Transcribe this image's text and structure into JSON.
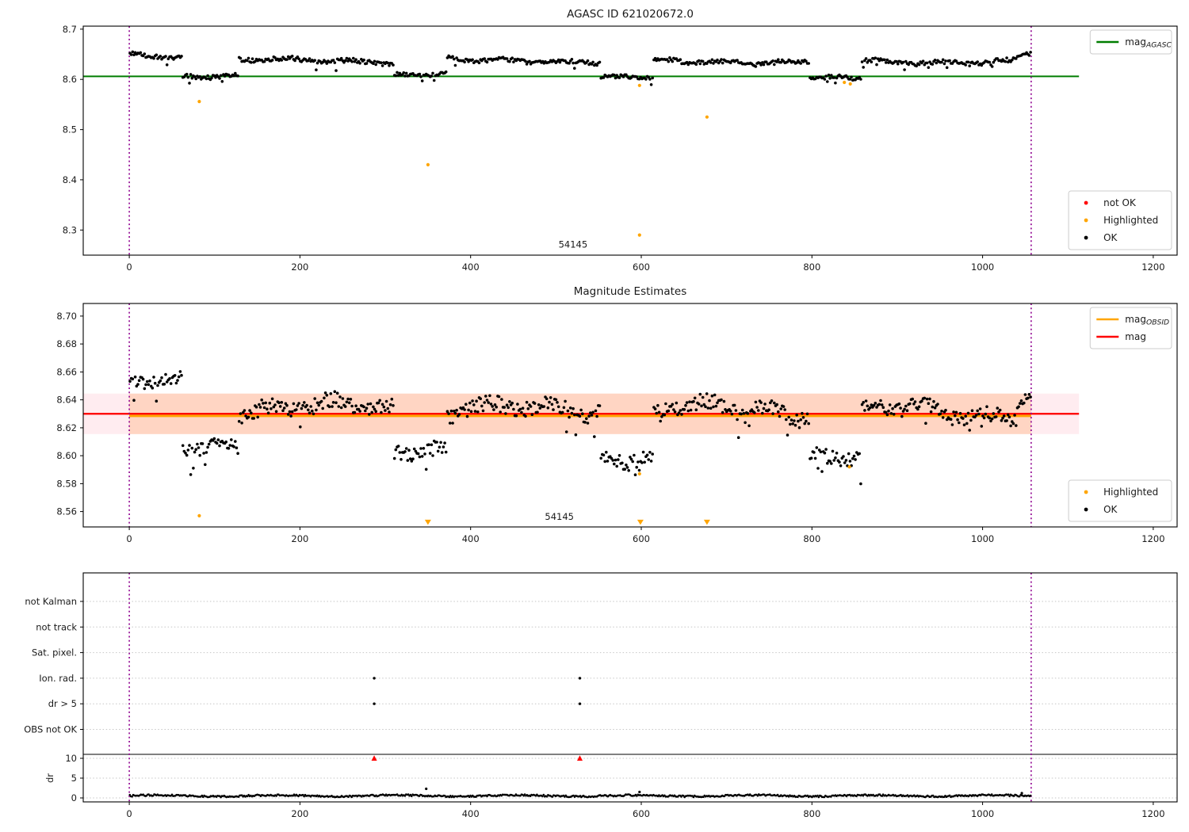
{
  "page": {
    "background": "#ffffff"
  },
  "colors": {
    "ok": "#000000",
    "highlighted": "#ffa500",
    "not_ok": "#ff0000",
    "mag_agasc_line": "#007d00",
    "mag_line": "#ff0000",
    "mag_obsid_line": "#ffa500",
    "interval_line": "#8f008f",
    "band_outer": "rgba(255,110,140,0.13)",
    "band_inner": "rgba(255,145,60,0.25)",
    "grid": "#c6c6c6",
    "axis": "#000000",
    "legend_border": "#cccccc"
  },
  "chart_data": [
    {
      "id": "agasc",
      "type": "scatter",
      "title": "AGASC ID 621020672.0",
      "xlabel": "",
      "ylabel": "",
      "xlim": [
        -54,
        1228
      ],
      "ylim": [
        8.25,
        8.706
      ],
      "xticks": [
        0,
        200,
        400,
        600,
        800,
        1000,
        1200
      ],
      "xticklabels": [
        "0",
        "200",
        "400",
        "600",
        "800",
        "1000",
        "1200"
      ],
      "yticks": [
        8.3,
        8.4,
        8.5,
        8.6,
        8.7
      ],
      "yticklabels": [
        "8.3",
        "8.4",
        "8.5",
        "8.6",
        "8.7"
      ],
      "grid": false,
      "lines": [
        {
          "name": "mag_agasc",
          "y": 8.606,
          "x0": -54,
          "x1": 1113,
          "color_key": "mag_agasc_line",
          "width": 2
        }
      ],
      "vlines": {
        "x": [
          0,
          1057
        ],
        "color_key": "interval_line"
      },
      "series": [
        {
          "name": "OK",
          "color_key": "ok",
          "marker_radius": 1.8,
          "step": 1.55,
          "segments": [
            [
              0,
              62,
              8.647,
              0.006
            ],
            [
              62,
              128,
              8.608,
              0.0055
            ],
            [
              128,
              310,
              8.637,
              0.006
            ],
            [
              310,
              372,
              8.61,
              0.005
            ],
            [
              372,
              552,
              8.637,
              0.006
            ],
            [
              552,
              614,
              8.603,
              0.0055
            ],
            [
              614,
              797,
              8.636,
              0.006
            ],
            [
              797,
              858,
              8.6,
              0.0055
            ],
            [
              858,
              1040,
              8.636,
              0.006
            ],
            [
              1040,
              1057,
              8.649,
              0.005
            ]
          ]
        },
        {
          "name": "not OK",
          "color_key": "not_ok",
          "marker_radius": 2.1,
          "points": []
        },
        {
          "name": "Highlighted",
          "color_key": "highlighted",
          "marker_radius": 2.1,
          "points": [
            [
              82,
              8.556
            ],
            [
              350,
              8.43
            ],
            [
              598,
              8.29
            ],
            [
              598,
              8.588
            ],
            [
              677,
              8.525
            ],
            [
              838,
              8.594
            ],
            [
              845,
              8.591
            ]
          ]
        }
      ],
      "annotations": [
        {
          "text": "54145",
          "x": 520,
          "y": 8.265
        }
      ],
      "legends": [
        {
          "loc": "upper-right",
          "entries": [
            {
              "type": "line",
              "label": "mag",
              "sub": "AGASC",
              "color_key": "mag_agasc_line"
            }
          ]
        },
        {
          "loc": "lower-right",
          "entries": [
            {
              "type": "dot",
              "label": "not OK",
              "color_key": "not_ok"
            },
            {
              "type": "dot",
              "label": "Highlighted",
              "color_key": "highlighted"
            },
            {
              "type": "dot",
              "label": "OK",
              "color_key": "ok"
            }
          ]
        }
      ]
    },
    {
      "id": "mag",
      "type": "scatter",
      "title": "Magnitude Estimates",
      "xlabel": "",
      "ylabel": "",
      "xlim": [
        -54,
        1228
      ],
      "ylim": [
        8.549,
        8.709
      ],
      "xticks": [
        0,
        200,
        400,
        600,
        800,
        1000,
        1200
      ],
      "xticklabels": [
        "0",
        "200",
        "400",
        "600",
        "800",
        "1000",
        "1200"
      ],
      "yticks": [
        8.56,
        8.58,
        8.6,
        8.62,
        8.64,
        8.66,
        8.68,
        8.7
      ],
      "yticklabels": [
        "8.56",
        "8.58",
        "8.60",
        "8.62",
        "8.64",
        "8.66",
        "8.68",
        "8.70"
      ],
      "grid": false,
      "bands": [
        {
          "y0": 8.6155,
          "y1": 8.6445,
          "x0": -54,
          "x1": 1113,
          "color_key": "band_outer"
        },
        {
          "y0": 8.6155,
          "y1": 8.6445,
          "x0": 0,
          "x1": 1057,
          "color_key": "band_inner"
        }
      ],
      "lines": [
        {
          "name": "mag_obsid",
          "y": 8.6285,
          "x0": 0,
          "x1": 1057,
          "color_key": "mag_obsid_line",
          "width": 3
        },
        {
          "name": "mag",
          "y": 8.63,
          "x0": -54,
          "x1": 1113,
          "color_key": "mag_line",
          "width": 2.4
        }
      ],
      "vlines": {
        "x": [
          0,
          1057
        ],
        "color_key": "interval_line"
      },
      "series": [
        {
          "name": "OK",
          "color_key": "ok",
          "marker_radius": 1.8,
          "step": 1.55,
          "segments": [
            [
              0,
              62,
              8.651,
              0.006
            ],
            [
              62,
              128,
              8.608,
              0.007
            ],
            [
              128,
              310,
              8.633,
              0.0075
            ],
            [
              310,
              372,
              8.607,
              0.007
            ],
            [
              372,
              552,
              8.632,
              0.0075
            ],
            [
              552,
              614,
              8.601,
              0.007
            ],
            [
              614,
              797,
              8.632,
              0.0075
            ],
            [
              797,
              858,
              8.601,
              0.007
            ],
            [
              858,
              1040,
              8.631,
              0.0075
            ],
            [
              1040,
              1057,
              8.641,
              0.007
            ]
          ]
        },
        {
          "name": "Highlighted",
          "color_key": "highlighted",
          "marker_radius": 2.1,
          "points": [
            [
              82,
              8.557
            ],
            [
              598,
              8.587
            ],
            [
              844,
              8.592
            ]
          ]
        }
      ],
      "clip_markers": {
        "shape": "triangle-down",
        "y": 8.5525,
        "x": [
          350,
          599,
          677
        ],
        "color_key": "highlighted"
      },
      "annotations": [
        {
          "text": "54145",
          "x": 504,
          "y": 8.554
        }
      ],
      "legends": [
        {
          "loc": "upper-right",
          "entries": [
            {
              "type": "line",
              "label": "mag",
              "sub": "OBSID",
              "color_key": "mag_obsid_line"
            },
            {
              "type": "line",
              "label": "mag",
              "color_key": "mag_line"
            }
          ]
        },
        {
          "loc": "lower-right",
          "entries": [
            {
              "type": "dot",
              "label": "Highlighted",
              "color_key": "highlighted"
            },
            {
              "type": "dot",
              "label": "OK",
              "color_key": "ok"
            }
          ]
        }
      ]
    },
    {
      "id": "flags",
      "type": "flags",
      "title": "",
      "xlabel": "",
      "xlim": [
        -54,
        1228
      ],
      "xticks": [
        0,
        200,
        400,
        600,
        800,
        1000,
        1200
      ],
      "xticklabels": [
        "0",
        "200",
        "400",
        "600",
        "800",
        "1000",
        "1200"
      ],
      "grid": true,
      "categories": [
        "not Kalman",
        "not track",
        "Sat. pixel.",
        "Ion. rad.",
        "dr > 5",
        "OBS not OK"
      ],
      "dr_axis": {
        "label": "dr",
        "ticks": [
          10,
          5,
          0
        ],
        "ticklabels": [
          "10",
          "5",
          "0"
        ],
        "separator_value": 11
      },
      "flag_points": [
        {
          "row": "Ion. rad.",
          "x": [
            287,
            528
          ]
        },
        {
          "row": "dr > 5",
          "x": [
            287,
            528
          ]
        }
      ],
      "clipped_dr_points": {
        "value": 10,
        "x": [
          287,
          528
        ],
        "color_key": "not_ok"
      },
      "dr_series": {
        "color_key": "ok",
        "marker_radius": 1.3,
        "step": 1.3,
        "segments": [
          [
            0,
            1057,
            0.55,
            0.22
          ]
        ],
        "spikes": [
          [
            348,
            2.3
          ],
          [
            598,
            1.5
          ],
          [
            1046,
            1.2
          ]
        ]
      },
      "vlines": {
        "x": [
          0,
          1057
        ],
        "color_key": "interval_line"
      }
    }
  ]
}
